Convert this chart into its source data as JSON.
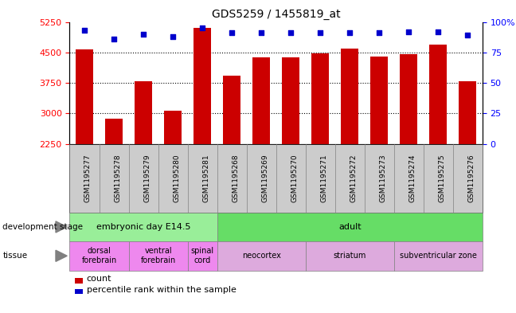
{
  "title": "GDS5259 / 1455819_at",
  "samples": [
    "GSM1195277",
    "GSM1195278",
    "GSM1195279",
    "GSM1195280",
    "GSM1195281",
    "GSM1195268",
    "GSM1195269",
    "GSM1195270",
    "GSM1195271",
    "GSM1195272",
    "GSM1195273",
    "GSM1195274",
    "GSM1195275",
    "GSM1195276"
  ],
  "counts": [
    4570,
    2870,
    3800,
    3060,
    5100,
    3920,
    4380,
    4380,
    4480,
    4600,
    4390,
    4450,
    4700,
    3800
  ],
  "percentiles": [
    93,
    86,
    90,
    88,
    95,
    91,
    91,
    91,
    91,
    91,
    91,
    92,
    92,
    89
  ],
  "ylim_left": [
    2250,
    5250
  ],
  "ylim_right": [
    0,
    100
  ],
  "yticks_left": [
    2250,
    3000,
    3750,
    4500,
    5250
  ],
  "yticks_right": [
    0,
    25,
    50,
    75,
    100
  ],
  "bar_color": "#cc0000",
  "dot_color": "#0000cc",
  "tick_area_color": "#cccccc",
  "dev_stage_rows": [
    {
      "label": "embryonic day E14.5",
      "start": 0,
      "end": 4,
      "color": "#99ee99"
    },
    {
      "label": "adult",
      "start": 5,
      "end": 13,
      "color": "#66dd66"
    }
  ],
  "tissue_rows": [
    {
      "label": "dorsal\nforebrain",
      "start": 0,
      "end": 1,
      "color": "#ee88ee"
    },
    {
      "label": "ventral\nforebrain",
      "start": 2,
      "end": 3,
      "color": "#ee88ee"
    },
    {
      "label": "spinal\ncord",
      "start": 4,
      "end": 4,
      "color": "#ee88ee"
    },
    {
      "label": "neocortex",
      "start": 5,
      "end": 7,
      "color": "#ddaadd"
    },
    {
      "label": "striatum",
      "start": 8,
      "end": 10,
      "color": "#ddaadd"
    },
    {
      "label": "subventricular zone",
      "start": 11,
      "end": 13,
      "color": "#ddaadd"
    }
  ],
  "background_color": "#ffffff"
}
